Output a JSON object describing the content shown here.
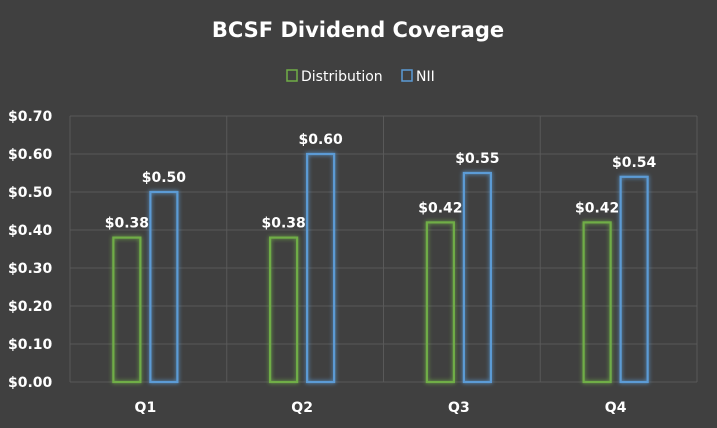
{
  "chart_data": {
    "type": "bar",
    "title": "BCSF Dividend Coverage",
    "categories": [
      "Q1",
      "Q2",
      "Q3",
      "Q4"
    ],
    "series": [
      {
        "name": "Distribution",
        "values": [
          0.38,
          0.38,
          0.42,
          0.42
        ],
        "color": "#70AD47"
      },
      {
        "name": "NII",
        "values": [
          0.5,
          0.6,
          0.55,
          0.54
        ],
        "color": "#5B9BD5"
      }
    ],
    "data_labels": {
      "Distribution": [
        "$0.38",
        "$0.38",
        "$0.42",
        "$0.42"
      ],
      "NII": [
        "$0.50",
        "$0.60",
        "$0.55",
        "$0.54"
      ]
    },
    "y_ticks": [
      "$0.00",
      "$0.10",
      "$0.20",
      "$0.30",
      "$0.40",
      "$0.50",
      "$0.60",
      "$0.70"
    ],
    "ylim": [
      0,
      0.7
    ],
    "xlabel": "",
    "ylabel": "",
    "grid": true,
    "legend_position": "top"
  },
  "colors": {
    "background": "#404040",
    "grid": "#595959"
  }
}
